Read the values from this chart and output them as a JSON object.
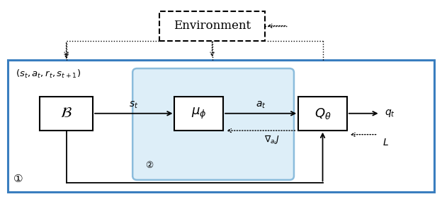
{
  "figsize": [
    6.24,
    2.82
  ],
  "dpi": 100,
  "bg": "#ffffff",
  "blue": "#3a7ebf",
  "light_blue_edge": "#8bbcdc",
  "light_blue_fill": "#ddeef8",
  "black": "#000000",
  "env_label": "Environment",
  "B_label": "$\\mathcal{B}$",
  "mu_label": "$\\mu_\\phi$",
  "Q_label": "$Q_\\theta$",
  "st_label": "$s_t$",
  "at_label": "$a_t$",
  "qt_label": "$q_t$",
  "grad_label": "$\\nabla_{a_t} J$",
  "L_label": "$L$",
  "tuple_label": "$(s_t, a_t, r_t, s_{t+1})$",
  "num1": "①",
  "num2": "②"
}
